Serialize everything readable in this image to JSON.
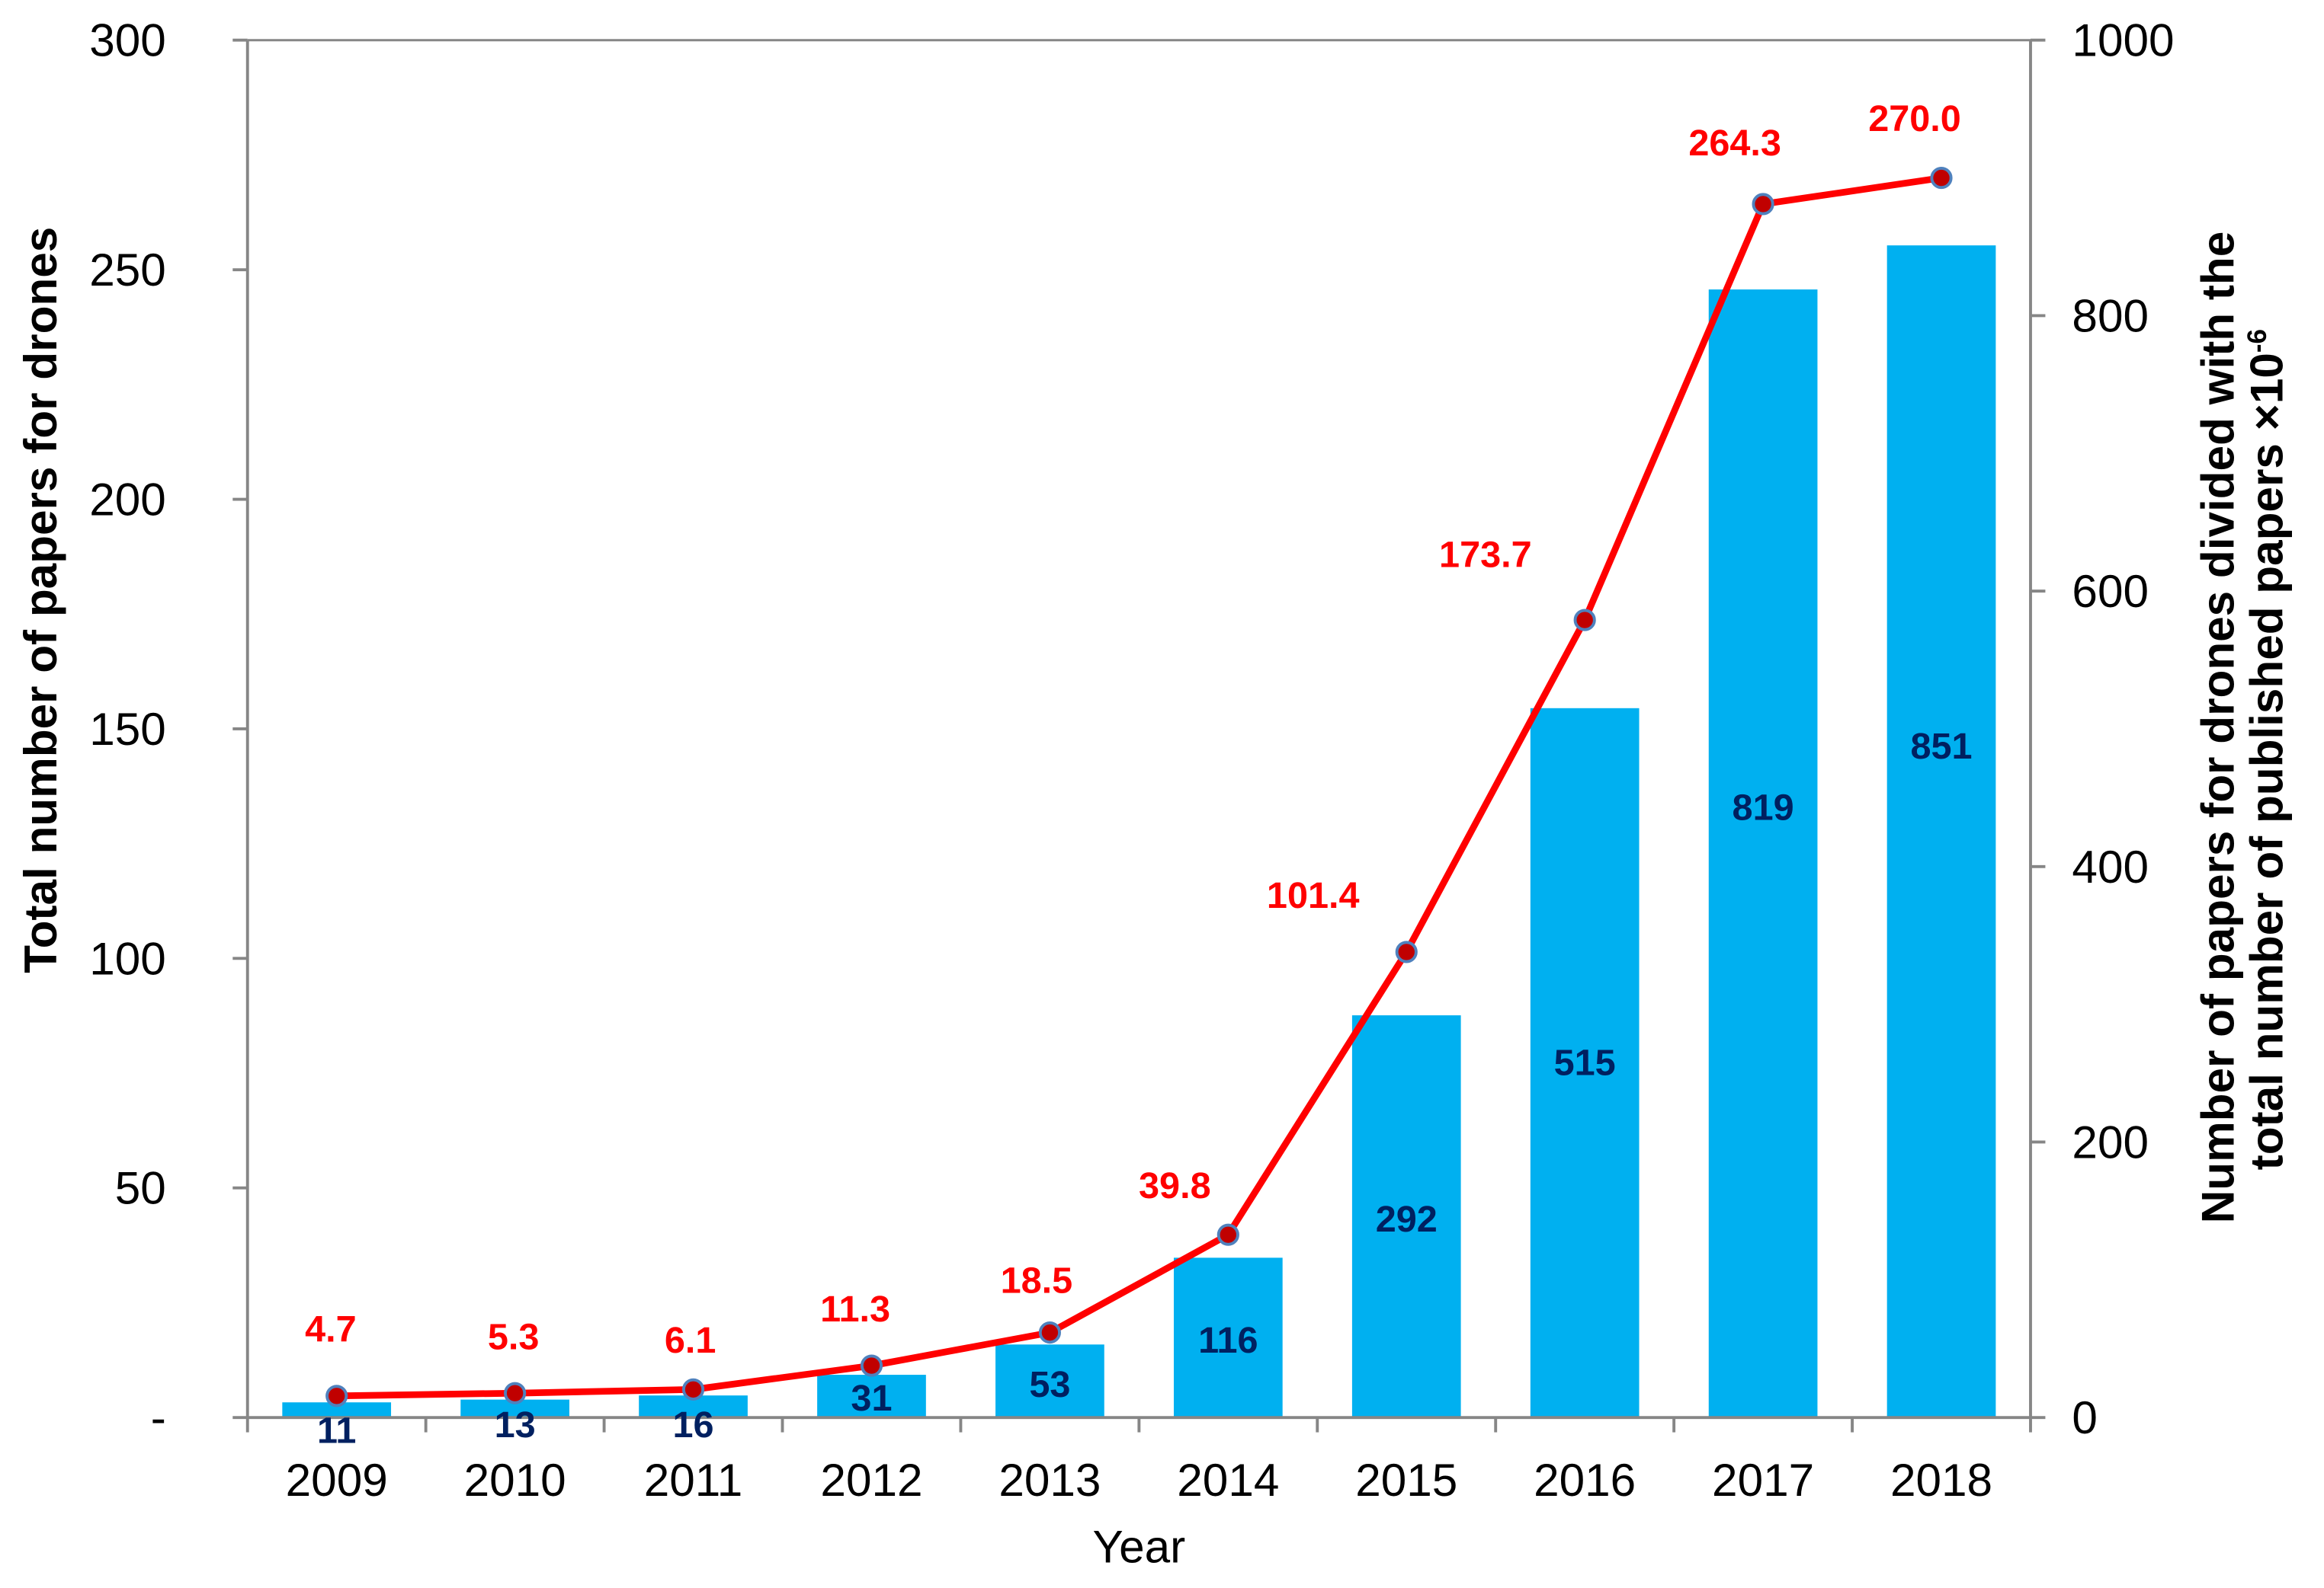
{
  "chart_data": {
    "type": "bar",
    "xlabel": "Year",
    "ylabel": "Total number of papers for drones",
    "y2label": [
      "Number of papers for drones divided with the",
      "total number of published papers ×10"
    ],
    "y2label_superscript": "-6",
    "categories": [
      "2009",
      "2010",
      "2011",
      "2012",
      "2013",
      "2014",
      "2015",
      "2016",
      "2017",
      "2018"
    ],
    "ylim": [
      0,
      300
    ],
    "yticks": [
      0,
      50,
      100,
      150,
      200,
      250,
      300
    ],
    "ytick_labels": [
      "-",
      "50",
      "100",
      "150",
      "200",
      "250",
      "300"
    ],
    "y2lim": [
      0,
      1000
    ],
    "y2ticks": [
      0,
      200,
      400,
      600,
      800,
      1000
    ],
    "grid": false,
    "bar_series": {
      "values": [
        11,
        13,
        16,
        31,
        53,
        116,
        292,
        515,
        819,
        851
      ],
      "color": "#00B0F0",
      "label_color": "#002060"
    },
    "line_series": {
      "values": [
        4.7,
        5.3,
        6.1,
        11.3,
        18.5,
        39.8,
        101.4,
        173.7,
        264.3,
        270.0
      ],
      "value_labels": [
        "4.7",
        "5.3",
        "6.1",
        "11.3",
        "18.5",
        "39.8",
        "101.4",
        "173.7",
        "264.3",
        "270.0"
      ],
      "color": "#FF0000",
      "marker_fill": "#C00000",
      "marker_edge": "#4F81BD",
      "label_color": "#FF0000"
    },
    "axis_color": "#868686",
    "text_color": "#000000"
  }
}
